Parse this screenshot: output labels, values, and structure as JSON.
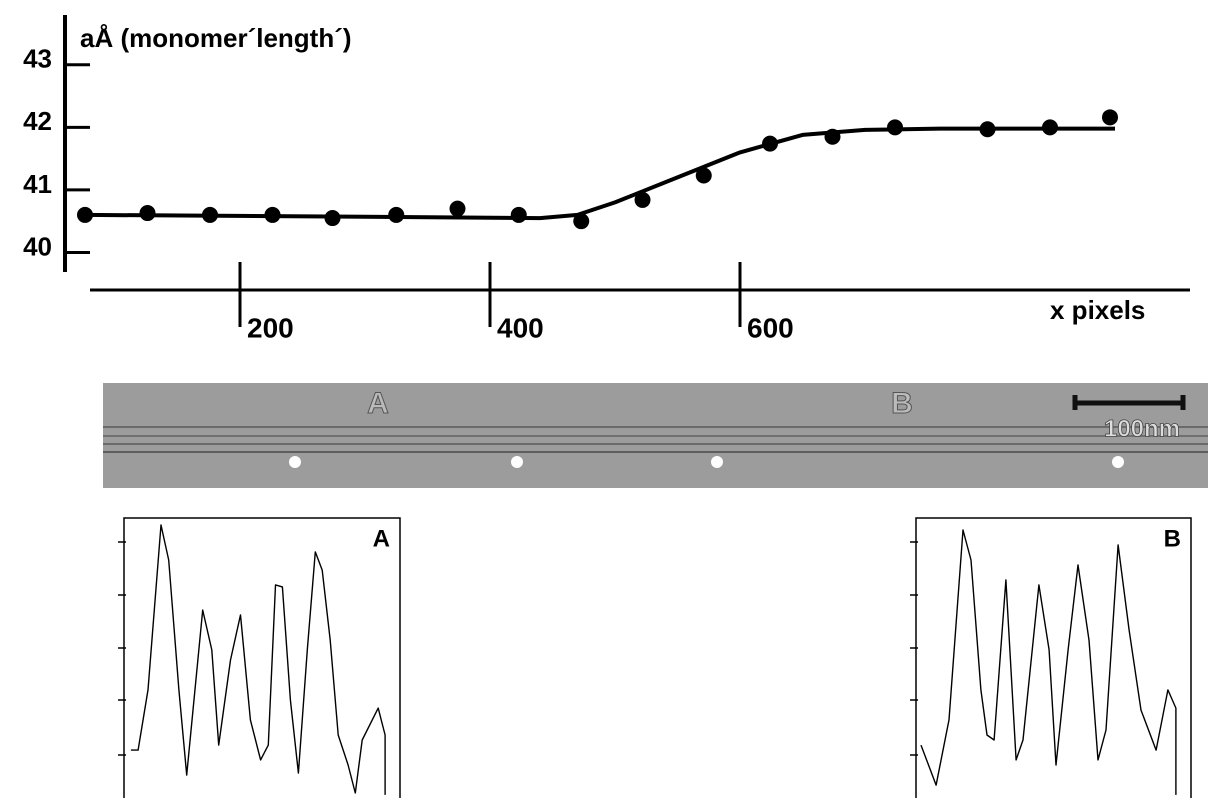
{
  "chart_data": [
    {
      "type": "line",
      "ylabel": "aÅ  (monomer´length´)",
      "xlabel": "x pixels",
      "xlim": [
        40,
        920
      ],
      "ylim": [
        39.4,
        43.7
      ],
      "xticks": [
        200,
        400,
        600
      ],
      "yticks": [
        40,
        41,
        42,
        43
      ],
      "series": [
        {
          "mode": "markers",
          "color": "#000000",
          "x": [
            76,
            126,
            176,
            226,
            274,
            325,
            374,
            423,
            473,
            522,
            571,
            624,
            674,
            724,
            798,
            848,
            896
          ],
          "values": [
            40.6,
            40.63,
            40.6,
            40.6,
            40.55,
            40.6,
            40.7,
            40.6,
            40.5,
            40.84,
            41.23,
            41.74,
            41.85,
            42.0,
            41.97,
            42.0,
            42.16
          ]
        },
        {
          "mode": "line",
          "color": "#000000",
          "x": [
            76,
            300,
            440,
            470,
            500,
            550,
            600,
            650,
            700,
            760,
            900
          ],
          "values": [
            40.6,
            40.57,
            40.55,
            40.6,
            40.8,
            41.2,
            41.6,
            41.88,
            41.96,
            41.98,
            41.98
          ]
        }
      ]
    },
    {
      "type": "line",
      "title": "A",
      "xlim": [
        0,
        100
      ],
      "ylim": [
        0,
        100
      ],
      "series": [
        {
          "color": "#000000",
          "x": [
            2.5,
            5.1,
            8.7,
            13.4,
            16.2,
            19.9,
            22.7,
            28.5,
            31.8,
            34.3,
            38.6,
            42.2,
            45.8,
            49.5,
            52.3,
            54.9,
            57.4,
            60.3,
            63.2,
            66.4,
            69.3,
            71.8,
            74.7,
            77.6,
            81.2,
            83.8,
            86.3,
            92.1,
            94.6,
            94.6
          ],
          "values": [
            17.1,
            17.1,
            38.6,
            97.5,
            85,
            38.6,
            8.2,
            67.1,
            52.9,
            18.9,
            49.3,
            65.4,
            27.9,
            13.6,
            18.9,
            76.1,
            75.4,
            35,
            8.9,
            52.9,
            87.9,
            81.4,
            56.4,
            22.5,
            11.8,
            1.8,
            20.7,
            32.1,
            22.5,
            1.1
          ]
        }
      ]
    },
    {
      "type": "line",
      "title": "B",
      "xlim": [
        0,
        100
      ],
      "ylim": [
        0,
        100
      ],
      "series": [
        {
          "color": "#000000",
          "x": [
            1.8,
            7.3,
            12,
            17.1,
            20,
            23.6,
            25.8,
            28.4,
            32.7,
            36.4,
            38.9,
            44.7,
            48.4,
            50.9,
            55.3,
            58.9,
            62.9,
            66.2,
            69.1,
            73.5,
            77.5,
            81.8,
            87.3,
            91.6,
            94.5,
            94.5
          ],
          "values": [
            18.9,
            4.6,
            27.9,
            95.7,
            85,
            38.6,
            22.5,
            20.7,
            77.9,
            13.6,
            20.7,
            76.1,
            52.9,
            11.8,
            52.9,
            83.2,
            56.4,
            13.6,
            24.3,
            90.4,
            60,
            31.4,
            17.1,
            38.6,
            32.1,
            1.1
          ]
        }
      ]
    }
  ],
  "micrograph": {
    "labels": [
      "A",
      "B"
    ],
    "scale_bar": "100nm"
  }
}
